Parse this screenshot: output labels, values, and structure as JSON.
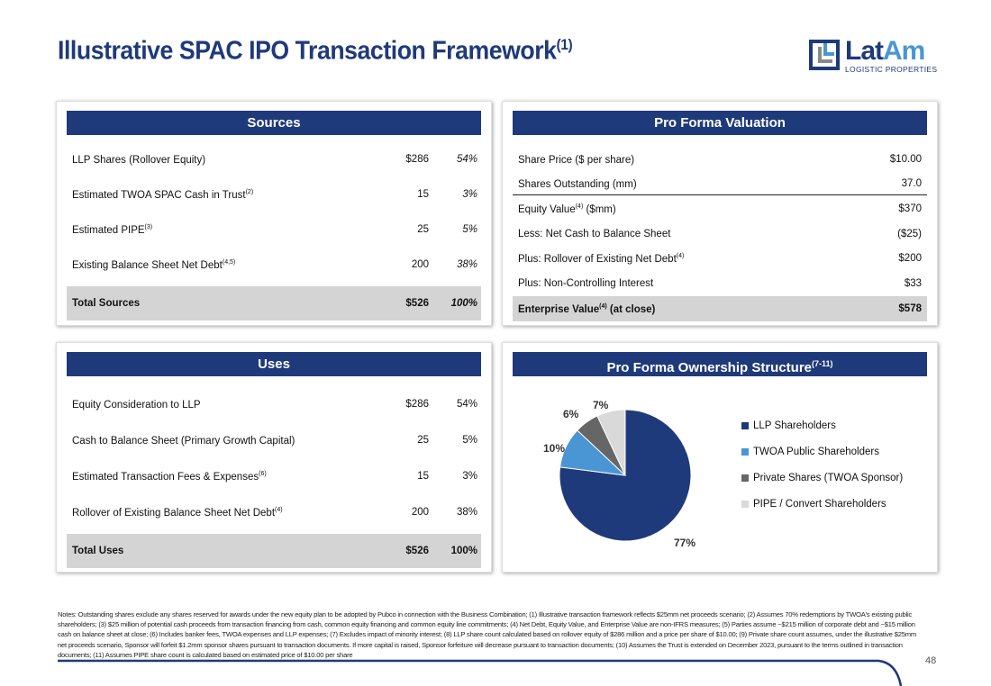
{
  "title": "Illustrative SPAC IPO Transaction Framework",
  "title_sup": "(1)",
  "logo": {
    "name_a": "Lat",
    "name_b": "Am",
    "sub": "LOGISTIC PROPERTIES"
  },
  "sources": {
    "header": "Sources",
    "rows": [
      {
        "label": "LLP Shares (Rollover Equity)",
        "sup": "",
        "value": "$286",
        "pct": "54%"
      },
      {
        "label": "Estimated TWOA SPAC Cash in Trust",
        "sup": "(2)",
        "value": "15",
        "pct": "3%"
      },
      {
        "label": "Estimated PIPE",
        "sup": "(3)",
        "value": "25",
        "pct": "5%"
      },
      {
        "label": "Existing Balance Sheet Net Debt",
        "sup": "(4,5)",
        "value": "200",
        "pct": "38%"
      }
    ],
    "total": {
      "label": "Total Sources",
      "value": "$526",
      "pct": "100%"
    }
  },
  "uses": {
    "header": "Uses",
    "rows": [
      {
        "label": "Equity Consideration to LLP",
        "sup": "",
        "value": "$286",
        "pct": "54%"
      },
      {
        "label": "Cash to Balance Sheet (Primary Growth Capital)",
        "sup": "",
        "value": "25",
        "pct": "5%"
      },
      {
        "label": "Estimated Transaction Fees & Expenses",
        "sup": "(6)",
        "value": "15",
        "pct": "3%"
      },
      {
        "label": "Rollover of Existing Balance Sheet Net Debt",
        "sup": "(4)",
        "value": "200",
        "pct": "38%"
      }
    ],
    "total": {
      "label": "Total Uses",
      "value": "$526",
      "pct": "100%"
    }
  },
  "valuation": {
    "header": "Pro Forma Valuation",
    "rows": [
      {
        "label": "Share Price ($ per share)",
        "sup": "",
        "sup_after": "",
        "value": "$10.00"
      },
      {
        "label": "Shares Outstanding (mm)",
        "sup": "",
        "sup_after": "",
        "value": "37.0"
      },
      {
        "label": "Equity Value",
        "sup": "(4)",
        "sup_after": " ($mm)",
        "value": "$370"
      },
      {
        "label": "Less: Net Cash to Balance Sheet",
        "sup": "",
        "sup_after": "",
        "value": "($25)"
      },
      {
        "label": "Plus: Rollover of Existing Net Debt",
        "sup": "(4)",
        "sup_after": "",
        "value": "$200"
      },
      {
        "label": "Plus: Non-Controlling Interest",
        "sup": "",
        "sup_after": "",
        "value": "$33"
      }
    ],
    "total": {
      "label": "Enterprise Value",
      "sup": "(4)",
      "sup_after": " (at close)",
      "value": "$578"
    }
  },
  "ownership": {
    "header": "Pro Forma Ownership Structure",
    "header_sup": "(7-11)"
  },
  "chart_data": {
    "type": "pie",
    "title": "Pro Forma Ownership Structure",
    "legend_position": "right",
    "categories": [
      "LLP Shareholders",
      "TWOA Public Shareholders",
      "Private Shares (TWOA Sponsor)",
      "PIPE / Convert Shareholders"
    ],
    "values": [
      77,
      10,
      6,
      7
    ],
    "labels": [
      "77%",
      "10%",
      "6%",
      "7%"
    ],
    "colors": [
      "#1f3a7a",
      "#4a96d4",
      "#666666",
      "#d9d9d9"
    ]
  },
  "notes": "Notes: Outstanding shares exclude any shares reserved for awards under the new equity plan to be adopted by Pubco in connection with the Business Combination; (1) Illustrative transaction framework reflects $25mm net proceeds scenario; (2) Assumes 70% redemptions by TWOA's existing public shareholders; (3) $25 million of potential cash proceeds from transaction financing from cash, common equity financing and common equity line commitments; (4) Net Debt, Equity Value, and Enterprise Value are non-IFRS measures; (5) Parties assume ~$215 million of corporate debt and ~$15 million cash on balance sheet at close; (6) Includes banker fees, TWOA expenses and LLP expenses; (7) Excludes impact of minority interest; (8) LLP share count calculated based on rollover equity of $286 million and a price per share of $10.00; (9) Private share count assumes, under the illustrative $25mm net proceeds scenario, Sponsor will forfeit $1.2mm sponsor shares pursuant to transaction documents. If more capital is raised, Sponsor forfeiture will decrease pursuant to transaction documents; (10) Assumes the Trust is extended on December 2023, pursuant to the terms outlined in transaction documents; (11) Assumes PIPE share count is calculated based on estimated price of $10.00 per share",
  "page_number": "48"
}
